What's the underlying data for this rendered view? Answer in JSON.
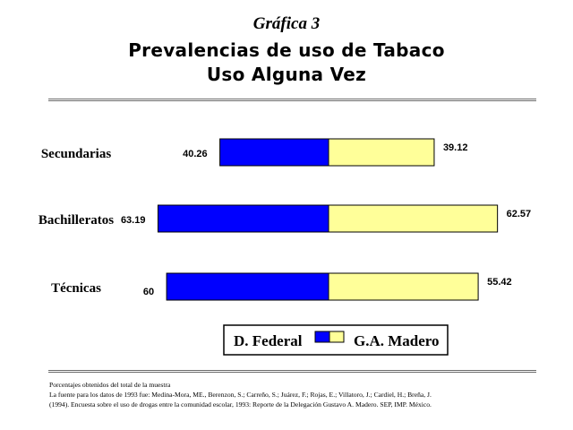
{
  "header": {
    "figure_label": "Gráfica 3",
    "title": "Prevalencias de uso de Tabaco",
    "subtitle": "Uso Alguna Vez"
  },
  "chart_data": {
    "type": "bar",
    "orientation": "horizontal-bidirectional",
    "categories": [
      "Secundarias",
      "Bachilleratos",
      "Técnicas"
    ],
    "series": [
      {
        "name": "D. Federal",
        "values": [
          40.26,
          63.19,
          60
        ],
        "color": "#0000ff",
        "direction": "left"
      },
      {
        "name": "G.A. Madero",
        "values": [
          39.12,
          62.57,
          55.42
        ],
        "color": "#ffff99",
        "direction": "right"
      }
    ],
    "title": "Prevalencias de uso de Tabaco",
    "subtitle": "Uso Alguna Vez",
    "legend_position": "bottom",
    "grid": false
  },
  "footer": {
    "note": "Porcentajes obtenidos del total de la muestra",
    "source_line1": "La fuente para los datos de 1993 fue: Medina-Mora, ME., Berenzon, S.; Carreño, S.; Juárez, F.; Rojas, E.; Villatoro, J.; Cardiel, H.; Breña, J.",
    "source_line2": "(1994). Encuesta sobre el uso de drogas entre la comunidad escolar, 1993: Reporte de la Delegación Gustavo A. Madero. SEP, IMP. México."
  }
}
